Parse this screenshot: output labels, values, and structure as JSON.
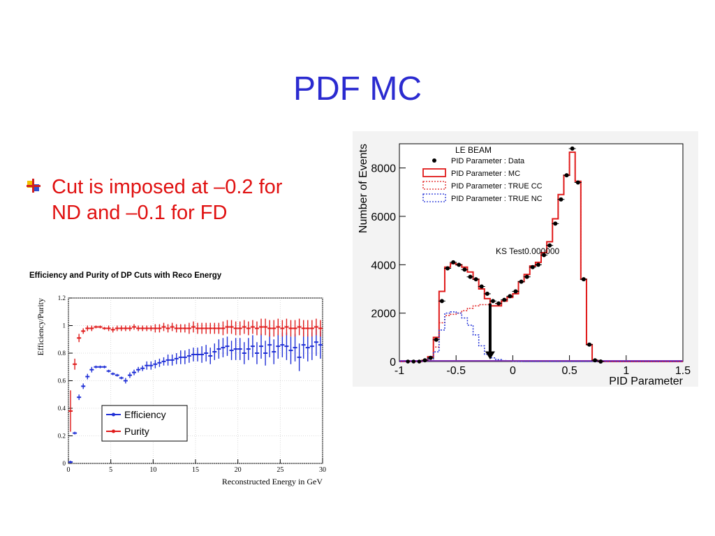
{
  "slide": {
    "title": "PDF MC",
    "bullet": "Cut is imposed at –0.2 for ND and –0.1 for FD",
    "bullet_icon": "cross-bullet-icon",
    "title_color": "#2b2bd0",
    "bullet_color": "#e01010"
  },
  "chart_data": [
    {
      "type": "line",
      "title": "Efficiency and Purity of DP Cuts with Reco Energy",
      "xlabel": "Reconstructed Energy in GeV",
      "ylabel": "Efficiency/Purity",
      "xlim": [
        0,
        30
      ],
      "ylim": [
        0,
        1.2
      ],
      "xticks": [
        0,
        5,
        10,
        15,
        20,
        25,
        30
      ],
      "yticks": [
        0,
        0.2,
        0.4,
        0.6,
        0.8,
        1,
        1.2
      ],
      "legend": "bottom-left",
      "grid": true,
      "series": [
        {
          "name": "Efficiency",
          "color": "#1f2fd6",
          "x": [
            0.25,
            0.75,
            1.25,
            1.75,
            2.25,
            2.75,
            3.25,
            3.75,
            4.25,
            4.75,
            5.25,
            5.75,
            6.25,
            6.75,
            7.25,
            7.75,
            8.25,
            8.75,
            9.25,
            9.75,
            10.25,
            10.75,
            11.25,
            11.75,
            12.25,
            12.75,
            13.25,
            13.75,
            14.25,
            14.75,
            15.25,
            15.75,
            16.25,
            16.75,
            17.25,
            17.75,
            18.25,
            18.75,
            19.25,
            19.75,
            20.25,
            20.75,
            21.25,
            21.75,
            22.25,
            22.75,
            23.25,
            23.75,
            24.25,
            24.75,
            25.25,
            25.75,
            26.25,
            26.75,
            27.25,
            27.75,
            28.25,
            28.75,
            29.25,
            29.75
          ],
          "values": [
            0.01,
            0.22,
            0.48,
            0.56,
            0.63,
            0.68,
            0.7,
            0.7,
            0.7,
            0.67,
            0.65,
            0.64,
            0.62,
            0.6,
            0.64,
            0.66,
            0.68,
            0.69,
            0.71,
            0.71,
            0.72,
            0.73,
            0.74,
            0.75,
            0.75,
            0.76,
            0.77,
            0.77,
            0.78,
            0.79,
            0.79,
            0.79,
            0.8,
            0.78,
            0.81,
            0.83,
            0.84,
            0.85,
            0.82,
            0.83,
            0.83,
            0.8,
            0.83,
            0.85,
            0.8,
            0.85,
            0.8,
            0.86,
            0.81,
            0.85,
            0.86,
            0.85,
            0.82,
            0.84,
            0.77,
            0.86,
            0.84,
            0.85,
            0.88,
            0.86
          ],
          "errors": [
            0.01,
            0.01,
            0.02,
            0.02,
            0.02,
            0.02,
            0.01,
            0.01,
            0.01,
            0.01,
            0.01,
            0.01,
            0.01,
            0.02,
            0.02,
            0.02,
            0.02,
            0.02,
            0.03,
            0.03,
            0.03,
            0.03,
            0.03,
            0.04,
            0.04,
            0.04,
            0.05,
            0.05,
            0.05,
            0.05,
            0.05,
            0.06,
            0.06,
            0.06,
            0.06,
            0.07,
            0.07,
            0.07,
            0.07,
            0.08,
            0.08,
            0.08,
            0.08,
            0.08,
            0.08,
            0.09,
            0.09,
            0.09,
            0.09,
            0.09,
            0.09,
            0.1,
            0.1,
            0.1,
            0.1,
            0.1,
            0.1,
            0.1,
            0.1,
            0.1
          ]
        },
        {
          "name": "Purity",
          "color": "#e01a1a",
          "x": [
            0.25,
            0.75,
            1.25,
            1.75,
            2.25,
            2.75,
            3.25,
            3.75,
            4.25,
            4.75,
            5.25,
            5.75,
            6.25,
            6.75,
            7.25,
            7.75,
            8.25,
            8.75,
            9.25,
            9.75,
            10.25,
            10.75,
            11.25,
            11.75,
            12.25,
            12.75,
            13.25,
            13.75,
            14.25,
            14.75,
            15.25,
            15.75,
            16.25,
            16.75,
            17.25,
            17.75,
            18.25,
            18.75,
            19.25,
            19.75,
            20.25,
            20.75,
            21.25,
            21.75,
            22.25,
            22.75,
            23.25,
            23.75,
            24.25,
            24.75,
            25.25,
            25.75,
            26.25,
            26.75,
            27.25,
            27.75,
            28.25,
            28.75,
            29.25,
            29.75
          ],
          "values": [
            0.38,
            0.72,
            0.91,
            0.96,
            0.98,
            0.98,
            0.99,
            0.99,
            0.98,
            0.98,
            0.97,
            0.98,
            0.98,
            0.98,
            0.98,
            0.99,
            0.98,
            0.98,
            0.98,
            0.98,
            0.98,
            0.98,
            0.99,
            0.98,
            0.99,
            0.98,
            0.98,
            0.98,
            0.98,
            0.99,
            0.98,
            0.98,
            0.98,
            0.98,
            0.98,
            0.98,
            0.98,
            0.99,
            0.99,
            0.98,
            0.98,
            0.99,
            0.98,
            0.99,
            0.98,
            0.99,
            0.99,
            0.98,
            0.98,
            0.99,
            0.98,
            0.99,
            0.98,
            0.98,
            0.99,
            0.98,
            0.98,
            0.98,
            0.99,
            0.98
          ],
          "errors": [
            0.15,
            0.04,
            0.03,
            0.02,
            0.02,
            0.02,
            0.01,
            0.01,
            0.01,
            0.02,
            0.02,
            0.02,
            0.02,
            0.02,
            0.02,
            0.02,
            0.02,
            0.02,
            0.02,
            0.02,
            0.03,
            0.03,
            0.03,
            0.03,
            0.03,
            0.03,
            0.03,
            0.03,
            0.04,
            0.04,
            0.04,
            0.04,
            0.04,
            0.04,
            0.04,
            0.04,
            0.05,
            0.05,
            0.05,
            0.05,
            0.05,
            0.05,
            0.05,
            0.05,
            0.05,
            0.06,
            0.06,
            0.06,
            0.06,
            0.06,
            0.06,
            0.06,
            0.06,
            0.06,
            0.06,
            0.06,
            0.06,
            0.06,
            0.06,
            0.06
          ]
        }
      ]
    },
    {
      "type": "area",
      "title": "LE BEAM",
      "xlabel": "PID Parameter",
      "ylabel": "Number of Events",
      "xlim": [
        -1,
        1.5
      ],
      "ylim": [
        0,
        9000
      ],
      "xticks": [
        -1,
        -0.5,
        0,
        0.5,
        1,
        1.5
      ],
      "yticks": [
        0,
        2000,
        4000,
        6000,
        8000
      ],
      "legend": "top-left",
      "annotation": "KS Test0.000000",
      "cut_marker": -0.2,
      "bin_edges": [
        -1,
        -0.95,
        -0.9,
        -0.85,
        -0.8,
        -0.75,
        -0.7,
        -0.65,
        -0.6,
        -0.55,
        -0.5,
        -0.45,
        -0.4,
        -0.35,
        -0.3,
        -0.25,
        -0.2,
        -0.15,
        -0.1,
        -0.05,
        0,
        0.05,
        0.1,
        0.15,
        0.2,
        0.25,
        0.3,
        0.35,
        0.4,
        0.45,
        0.5,
        0.55,
        0.6,
        0.65,
        0.7,
        0.75,
        0.8,
        0.85,
        0.9,
        0.95,
        1,
        1.05,
        1.1,
        1.15,
        1.2,
        1.25,
        1.3,
        1.35,
        1.4,
        1.45,
        1.5
      ],
      "series": [
        {
          "name": "PID Parameter : Data",
          "style": "points",
          "color": "#000000",
          "values": [
            0,
            0,
            0,
            0,
            50,
            150,
            900,
            2500,
            3850,
            4100,
            4000,
            3800,
            3500,
            3400,
            3100,
            2800,
            2500,
            2400,
            2550,
            2700,
            2900,
            3300,
            3500,
            3900,
            4000,
            4400,
            4800,
            5700,
            6700,
            7700,
            8800,
            7400,
            3400,
            700,
            50,
            0,
            0,
            0,
            0,
            0,
            0,
            0,
            0,
            0,
            0,
            0,
            0,
            0,
            0,
            0
          ]
        },
        {
          "name": "PID Parameter : MC",
          "style": "hist-solid",
          "color": "#e01a1a",
          "values": [
            0,
            0,
            0,
            0,
            50,
            200,
            1000,
            2900,
            3900,
            4050,
            4000,
            3900,
            3700,
            3400,
            3000,
            2600,
            2300,
            2300,
            2500,
            2650,
            2800,
            3300,
            3600,
            3950,
            4100,
            4500,
            4950,
            5900,
            6900,
            7700,
            8650,
            7450,
            3400,
            700,
            50,
            0,
            0,
            0,
            0,
            0,
            0,
            0,
            0,
            0,
            0,
            0,
            0,
            0,
            0,
            0
          ]
        },
        {
          "name": "PID Parameter : TRUE CC",
          "style": "hist-dotted",
          "color": "#e01a1a",
          "values": [
            0,
            0,
            0,
            0,
            30,
            100,
            600,
            1600,
            1900,
            1950,
            2000,
            2100,
            2200,
            2300,
            2350,
            2350,
            2300,
            2400,
            2500,
            2650,
            2800,
            3300,
            3600,
            3950,
            4100,
            4500,
            4950,
            5900,
            6900,
            7700,
            8650,
            7450,
            3400,
            700,
            50,
            0,
            0,
            0,
            0,
            0,
            0,
            0,
            0,
            0,
            0,
            0,
            0,
            0,
            0,
            0
          ]
        },
        {
          "name": "PID Parameter : TRUE NC",
          "style": "hist-dotted",
          "color": "#1f2fd6",
          "values": [
            0,
            0,
            0,
            0,
            20,
            100,
            400,
            1300,
            2000,
            2050,
            2000,
            1800,
            1500,
            1100,
            650,
            300,
            150,
            80,
            40,
            20,
            10,
            5,
            0,
            0,
            0,
            0,
            0,
            0,
            0,
            0,
            0,
            0,
            0,
            0,
            0,
            0,
            0,
            0,
            0,
            0,
            0,
            0,
            0,
            0,
            0,
            0,
            0,
            0,
            0,
            0
          ]
        }
      ]
    }
  ]
}
